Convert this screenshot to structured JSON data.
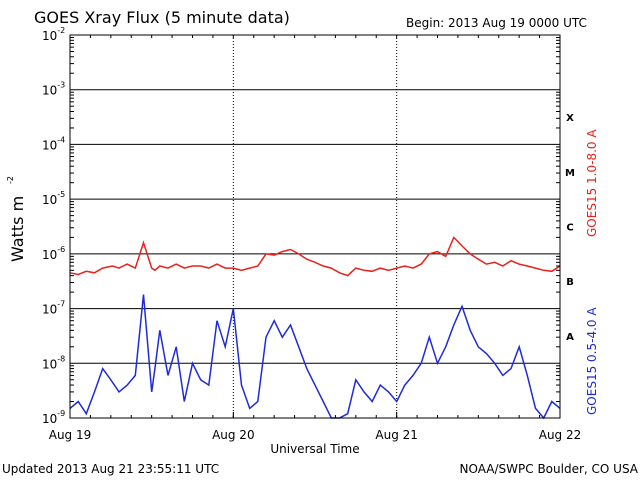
{
  "chart_data": {
    "type": "line",
    "title": "GOES Xray Flux (5 minute data)",
    "begin_label": "Begin:  2013 Aug 19 0000 UTC",
    "xlabel": "Universal Time",
    "ylabel_base": "Watts m",
    "ylabel_exp": "-2",
    "y_scale": "log",
    "ylim": [
      1e-09,
      0.01
    ],
    "grid": true,
    "y_ticks": [
      {
        "base": "10",
        "exp": "-2",
        "value": 0.01
      },
      {
        "base": "10",
        "exp": "-3",
        "value": 0.001
      },
      {
        "base": "10",
        "exp": "-4",
        "value": 0.0001
      },
      {
        "base": "10",
        "exp": "-5",
        "value": 1e-05
      },
      {
        "base": "10",
        "exp": "-6",
        "value": 1e-06
      },
      {
        "base": "10",
        "exp": "-7",
        "value": 1e-07
      },
      {
        "base": "10",
        "exp": "-8",
        "value": 1e-08
      },
      {
        "base": "10",
        "exp": "-9",
        "value": 1e-09
      }
    ],
    "x_ticks": [
      "Aug 19",
      "Aug 20",
      "Aug 21",
      "Aug 22"
    ],
    "x_range_days": [
      0,
      3
    ],
    "flare_classes": [
      {
        "label": "X",
        "value": 0.000316
      },
      {
        "label": "M",
        "value": 3.16e-05
      },
      {
        "label": "C",
        "value": 3.16e-06
      },
      {
        "label": "B",
        "value": 3.16e-07
      },
      {
        "label": "A",
        "value": 3.16e-08
      }
    ],
    "series": [
      {
        "name": "GOES15 1.0-8.0 A",
        "color": "#e8211c",
        "x_days": [
          0.0,
          0.05,
          0.1,
          0.15,
          0.2,
          0.26,
          0.3,
          0.35,
          0.4,
          0.45,
          0.5,
          0.52,
          0.55,
          0.6,
          0.65,
          0.7,
          0.75,
          0.8,
          0.85,
          0.9,
          0.95,
          1.0,
          1.05,
          1.1,
          1.15,
          1.2,
          1.25,
          1.3,
          1.35,
          1.4,
          1.45,
          1.5,
          1.55,
          1.6,
          1.65,
          1.7,
          1.75,
          1.8,
          1.85,
          1.9,
          1.95,
          2.0,
          2.05,
          2.1,
          2.15,
          2.2,
          2.25,
          2.3,
          2.35,
          2.4,
          2.45,
          2.5,
          2.55,
          2.6,
          2.65,
          2.7,
          2.75,
          2.8,
          2.85,
          2.9,
          2.95,
          3.0
        ],
        "values": [
          4.5e-07,
          4.2e-07,
          4.8e-07,
          4.5e-07,
          5.5e-07,
          6e-07,
          5.5e-07,
          6.5e-07,
          5.5e-07,
          1.6e-06,
          5.5e-07,
          5e-07,
          6e-07,
          5.5e-07,
          6.5e-07,
          5.5e-07,
          6e-07,
          6e-07,
          5.5e-07,
          6.5e-07,
          5.5e-07,
          5.5e-07,
          5e-07,
          5.5e-07,
          6e-07,
          1e-06,
          9.5e-07,
          1.1e-06,
          1.2e-06,
          1e-06,
          8e-07,
          7e-07,
          6e-07,
          5.5e-07,
          4.5e-07,
          4e-07,
          5.5e-07,
          5e-07,
          4.8e-07,
          5.5e-07,
          5e-07,
          5.5e-07,
          6e-07,
          5.5e-07,
          6.5e-07,
          1e-06,
          1.1e-06,
          9e-07,
          2e-06,
          1.4e-06,
          1e-06,
          8e-07,
          6.5e-07,
          7e-07,
          6e-07,
          7.5e-07,
          6.5e-07,
          6e-07,
          5.5e-07,
          5e-07,
          4.8e-07,
          6e-07
        ]
      },
      {
        "name": "GOES15 0.5-4.0 A",
        "color": "#1f2bd8",
        "x_days": [
          0.0,
          0.05,
          0.1,
          0.15,
          0.2,
          0.25,
          0.3,
          0.35,
          0.4,
          0.45,
          0.5,
          0.52,
          0.55,
          0.6,
          0.65,
          0.7,
          0.75,
          0.8,
          0.85,
          0.9,
          0.95,
          1.0,
          1.05,
          1.1,
          1.15,
          1.2,
          1.25,
          1.3,
          1.35,
          1.4,
          1.45,
          1.5,
          1.55,
          1.6,
          1.65,
          1.7,
          1.75,
          1.8,
          1.85,
          1.9,
          1.95,
          2.0,
          2.05,
          2.1,
          2.15,
          2.2,
          2.25,
          2.3,
          2.35,
          2.4,
          2.45,
          2.5,
          2.55,
          2.6,
          2.65,
          2.7,
          2.75,
          2.8,
          2.85,
          2.9,
          2.95,
          3.0
        ],
        "values": [
          1.5e-09,
          2e-09,
          1.2e-09,
          3e-09,
          8e-09,
          5e-09,
          3e-09,
          4e-09,
          6e-09,
          1.8e-07,
          3e-09,
          8e-09,
          4e-08,
          6e-09,
          2e-08,
          2e-09,
          1e-08,
          5e-09,
          4e-09,
          6e-08,
          2e-08,
          1e-07,
          4e-09,
          1.5e-09,
          2e-09,
          3e-08,
          6e-08,
          3e-08,
          5e-08,
          2e-08,
          8e-09,
          4e-09,
          2e-09,
          1e-09,
          1e-09,
          1.2e-09,
          5e-09,
          3e-09,
          2e-09,
          4e-09,
          3e-09,
          2e-09,
          4e-09,
          6e-09,
          1e-08,
          3e-08,
          1e-08,
          2e-08,
          5e-08,
          1.1e-07,
          4e-08,
          2e-08,
          1.5e-08,
          1e-08,
          6e-09,
          8e-09,
          2e-08,
          6e-09,
          1.5e-09,
          1e-09,
          2e-09,
          1.5e-09
        ]
      }
    ]
  },
  "footer": {
    "updated": "Updated 2013 Aug 21 23:55:11 UTC",
    "source": "NOAA/SWPC Boulder, CO USA"
  }
}
